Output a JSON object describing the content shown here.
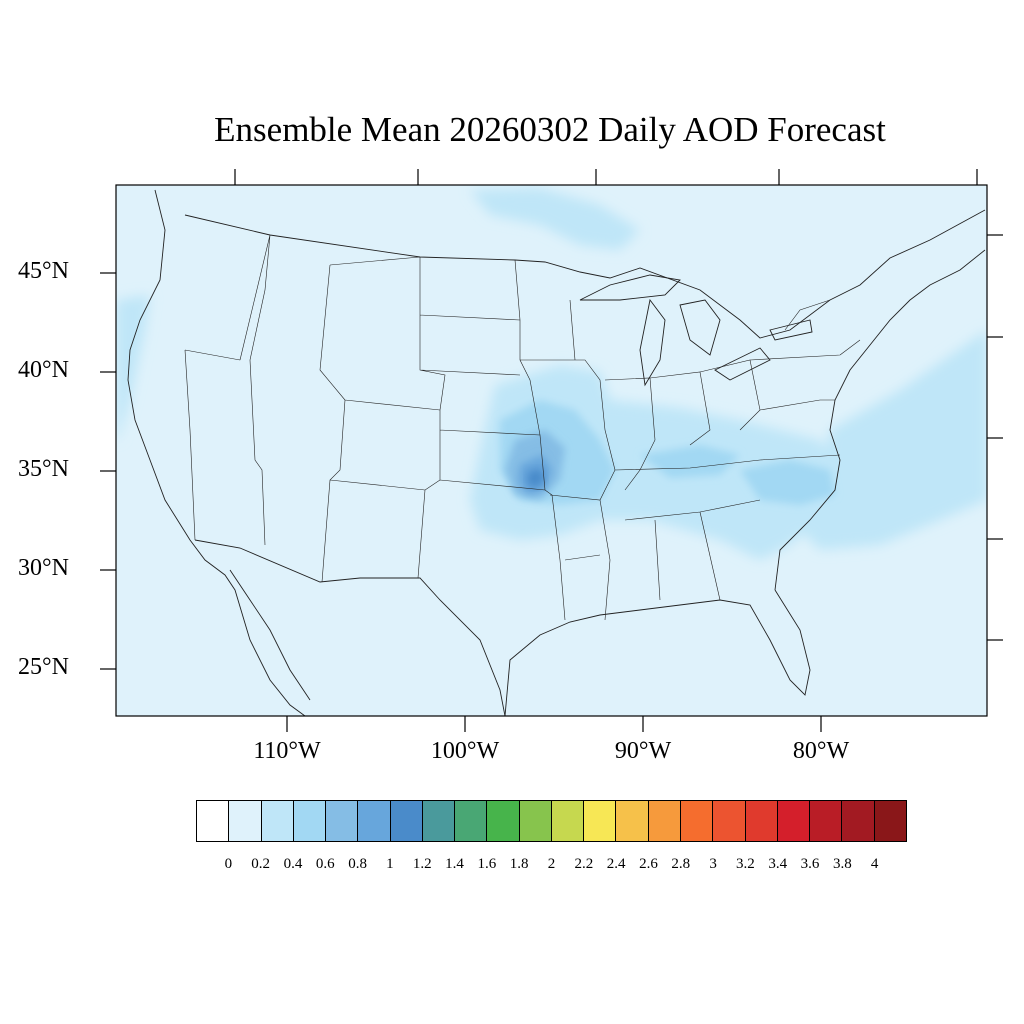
{
  "title": "Ensemble Mean 20260302 Daily AOD Forecast",
  "map": {
    "background_color": "#dff2fb",
    "border_color": "#222222",
    "lat_labels": [
      "45°N",
      "40°N",
      "35°N",
      "30°N",
      "25°N"
    ],
    "lon_labels": [
      "110°W",
      "100°W",
      "90°W",
      "80°W"
    ],
    "aod_regions": [
      {
        "name": "central-plains-plume",
        "level": 0.8
      },
      {
        "name": "ozarks-core",
        "level": 1.2
      },
      {
        "name": "east-coast-band",
        "level": 0.4
      },
      {
        "name": "great-lakes-band",
        "level": 0.4
      }
    ]
  },
  "colorbar": {
    "labels": [
      "0",
      "0.2",
      "0.4",
      "0.6",
      "0.8",
      "1",
      "1.2",
      "1.4",
      "1.6",
      "1.8",
      "2",
      "2.2",
      "2.4",
      "2.6",
      "2.8",
      "3",
      "3.2",
      "3.4",
      "3.6",
      "3.8",
      "4"
    ],
    "colors": [
      "#ffffff",
      "#dff2fb",
      "#bfe6f8",
      "#a2d8f3",
      "#85bde5",
      "#67a6dc",
      "#4a8bca",
      "#4a9a9c",
      "#49a774",
      "#47b44b",
      "#87c44d",
      "#c6d84f",
      "#f7e755",
      "#f6c14a",
      "#f69a3c",
      "#f56d2e",
      "#ec5430",
      "#e03a2d",
      "#d41f2b",
      "#b91d26",
      "#a21a22",
      "#8a1719"
    ]
  }
}
